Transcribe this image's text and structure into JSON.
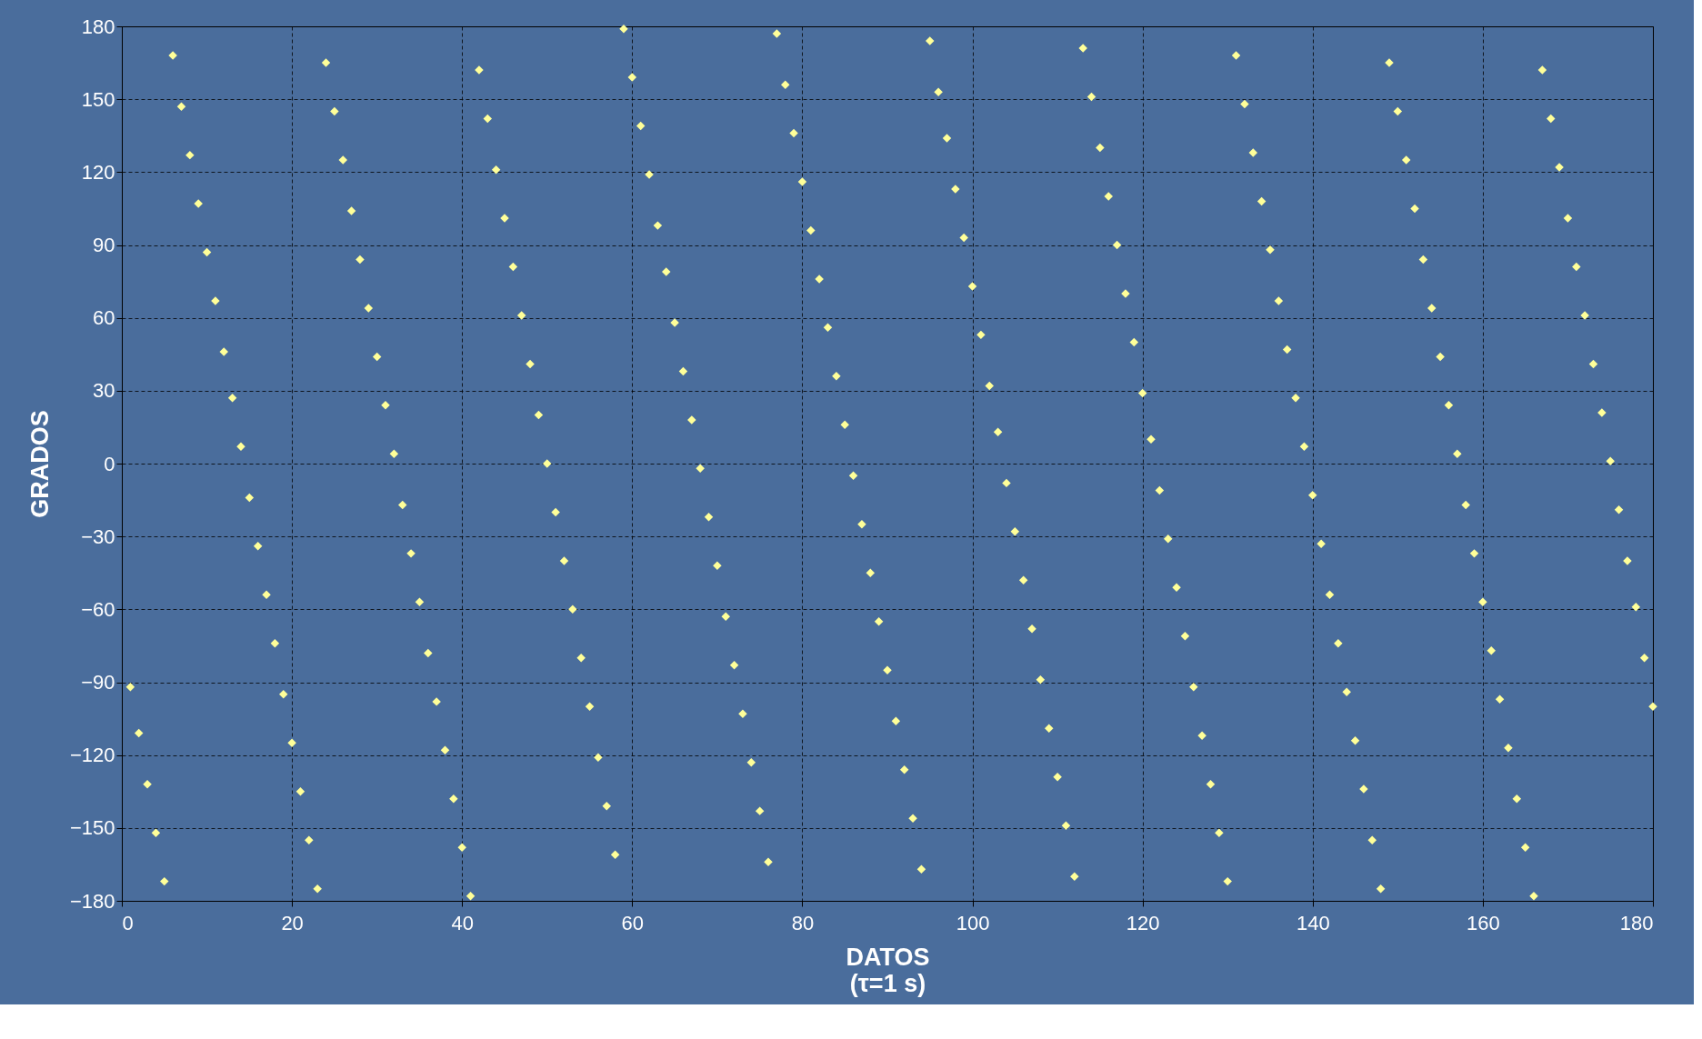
{
  "chart_data": {
    "type": "scatter",
    "xlabel": "DATOS\n(τ=1 s)",
    "ylabel": "GRADOS",
    "xlim": [
      0,
      180
    ],
    "xticks": [
      0,
      20,
      40,
      60,
      80,
      100,
      120,
      140,
      160,
      180
    ],
    "ylim": [
      -180,
      180
    ],
    "yticks": [
      -180,
      -150,
      -120,
      -90,
      -60,
      -30,
      0,
      30,
      60,
      90,
      120,
      150,
      180
    ],
    "grid": true,
    "marker": "diamond",
    "legend": false,
    "series": [
      {
        "color": "#ffff99",
        "x": [
          1,
          2,
          3,
          4,
          5,
          6,
          7,
          8,
          9,
          10,
          11,
          12,
          13,
          14,
          15,
          16,
          17,
          18,
          19,
          20,
          21,
          22,
          23,
          24,
          25,
          26,
          27,
          28,
          29,
          30,
          31,
          32,
          33,
          34,
          35,
          36,
          37,
          38,
          39,
          40,
          41,
          42,
          43,
          44,
          45,
          46,
          47,
          48,
          49,
          50,
          51,
          52,
          53,
          54,
          55,
          56,
          57,
          58,
          59,
          60,
          61,
          62,
          63,
          64,
          65,
          66,
          67,
          68,
          69,
          70,
          71,
          72,
          73,
          74,
          75,
          76,
          77,
          78,
          79,
          80,
          81,
          82,
          83,
          84,
          85,
          86,
          87,
          88,
          89,
          90,
          91,
          92,
          93,
          94,
          95,
          96,
          97,
          98,
          99,
          100,
          101,
          102,
          103,
          104,
          105,
          106,
          107,
          108,
          109,
          110,
          111,
          112,
          113,
          114,
          115,
          116,
          117,
          118,
          119,
          120,
          121,
          122,
          123,
          124,
          125,
          126,
          127,
          128,
          129,
          130,
          131,
          132,
          133,
          134,
          135,
          136,
          137,
          138,
          139,
          140,
          141,
          142,
          143,
          144,
          145,
          146,
          147,
          148,
          149,
          150,
          151,
          152,
          153,
          154,
          155,
          156,
          157,
          158,
          159,
          160,
          161,
          162,
          163,
          164,
          165,
          166,
          167,
          168,
          169,
          170,
          171,
          172,
          173,
          174,
          175,
          176,
          177,
          178,
          179,
          180
        ],
        "values": [
          -92,
          -111,
          -132,
          -152,
          -172,
          168,
          147,
          127,
          107,
          87,
          67,
          46,
          27,
          7,
          -14,
          -34,
          -54,
          -74,
          -95,
          -115,
          -135,
          -155,
          -175,
          165,
          145,
          125,
          104,
          84,
          64,
          44,
          24,
          4,
          -17,
          -37,
          -57,
          -78,
          -98,
          -118,
          -138,
          -158,
          -178,
          162,
          142,
          121,
          101,
          81,
          61,
          41,
          20,
          0,
          -20,
          -40,
          -60,
          -80,
          -100,
          -121,
          -141,
          -161,
          179,
          159,
          139,
          119,
          98,
          79,
          58,
          38,
          18,
          -2,
          -22,
          -42,
          -63,
          -83,
          -103,
          -123,
          -143,
          -164,
          177,
          156,
          136,
          116,
          96,
          76,
          56,
          36,
          16,
          -5,
          -25,
          -45,
          -65,
          -85,
          -106,
          -126,
          -146,
          -167,
          174,
          153,
          134,
          113,
          93,
          73,
          53,
          32,
          13,
          -8,
          -28,
          -48,
          -68,
          -89,
          -109,
          -129,
          -149,
          -170,
          171,
          151,
          130,
          110,
          90,
          70,
          50,
          29,
          10,
          -11,
          -31,
          -51,
          -71,
          -92,
          -112,
          -132,
          -152,
          -172,
          168,
          148,
          128,
          108,
          88,
          67,
          47,
          27,
          7,
          -13,
          -33,
          -54,
          -74,
          -94,
          -114,
          -134,
          -155,
          -175,
          165,
          145,
          125,
          105,
          84,
          64,
          44,
          24,
          4,
          -17,
          -37,
          -57,
          -77,
          -97,
          -117,
          -138,
          -158,
          -178,
          162,
          142,
          122,
          101,
          81,
          61,
          41,
          21,
          1,
          -19,
          -40,
          -59,
          -80,
          -100
        ]
      }
    ]
  }
}
